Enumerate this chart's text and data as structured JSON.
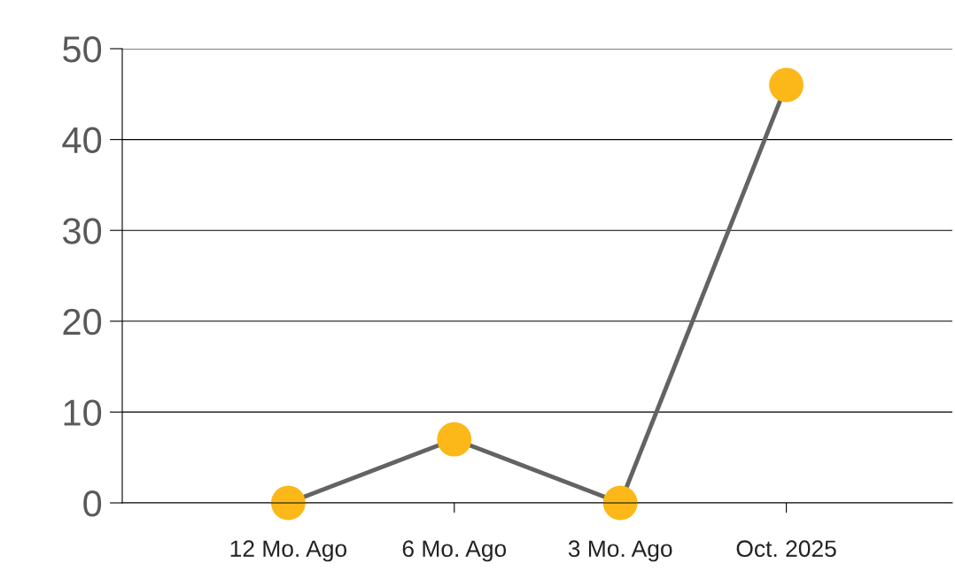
{
  "chart_data": {
    "type": "line",
    "categories": [
      "12 Mo. Ago",
      "6 Mo. Ago",
      "3 Mo. Ago",
      "Oct. 2025"
    ],
    "series": [
      {
        "color": "#636363",
        "colors": [
          "#fbb818",
          "#fbb818",
          "#fbb818",
          "#fbb818"
        ],
        "values": [
          0,
          7,
          0,
          46
        ]
      }
    ],
    "ylim": [
      0,
      50
    ],
    "yticks": [
      0,
      10,
      20,
      30,
      40,
      50
    ],
    "grid": "y",
    "marker": "circle",
    "line_style": "solid",
    "legend": false
  }
}
